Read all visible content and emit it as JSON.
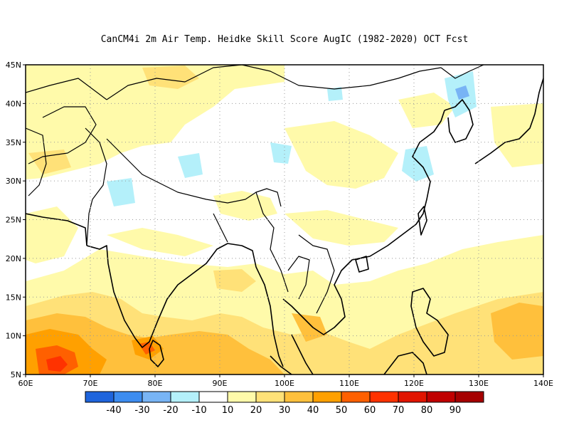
{
  "title": "CanCM4i  2m Air Temp. Heidke Skill Score AugIC (1982-2020) OCT Fcst",
  "map": {
    "lon_range": [
      60,
      140
    ],
    "lat_range": [
      5,
      45
    ],
    "lon_ticks": [
      "60E",
      "70E",
      "80E",
      "90E",
      "100E",
      "110E",
      "120E",
      "130E",
      "140E"
    ],
    "lat_ticks": [
      "5N",
      "10N",
      "15N",
      "20N",
      "25N",
      "30N",
      "35N",
      "40N",
      "45N"
    ],
    "grid": "dotted"
  },
  "colorbar": {
    "colors": [
      "#1e64dc",
      "#3c8cf0",
      "#78b4f5",
      "#b4f0fa",
      "#ffffff",
      "#fffaaa",
      "#ffe178",
      "#ffc03c",
      "#ffa000",
      "#ff6000",
      "#ff3200",
      "#e11400",
      "#c00000",
      "#a50000"
    ],
    "labels": [
      "-40",
      "-30",
      "-20",
      "-10",
      "10",
      "20",
      "30",
      "40",
      "50",
      "60",
      "70",
      "80",
      "90"
    ]
  }
}
